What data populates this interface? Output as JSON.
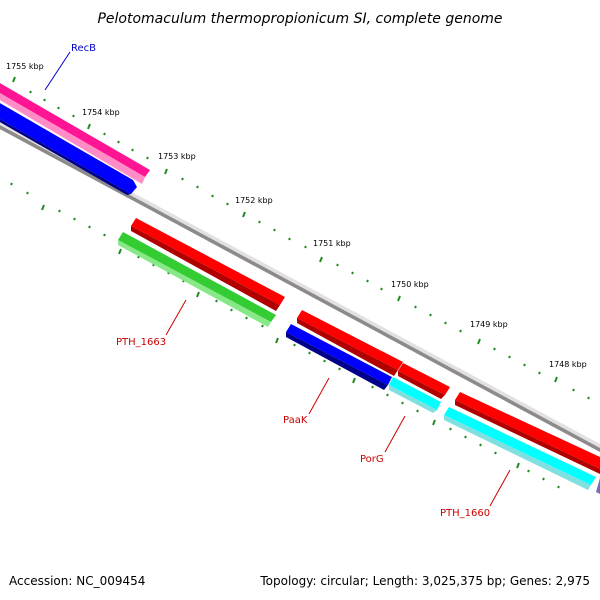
{
  "title": "Pelotomaculum thermopropionicum SI, complete genome",
  "kbp_labels": [
    "1755 kbp",
    "1754 kbp",
    "1753 kbp",
    "1752 kbp",
    "1751 kbp",
    "1750 kbp",
    "1749 kbp",
    "1748 kbp"
  ],
  "gene_labels": [
    "RecB",
    "PTH_1663",
    "PaaK",
    "PorG",
    "PTH_1660"
  ],
  "footer": {
    "accession": "Accession: NC_009454",
    "stats": "Topology: circular; Length: 3,025,375 bp; Genes: 2,975"
  },
  "colors": {
    "backbone": "#8c8a8a",
    "recb_gene": "#ff1493",
    "blue_gene": "#0000ff",
    "red_gene": "#ff0000",
    "green_gene": "#33cc33",
    "cyan_gene": "#00ffff",
    "tick": "#228b22",
    "label_blue": "#0000cc",
    "label_red": "#cc0000"
  }
}
